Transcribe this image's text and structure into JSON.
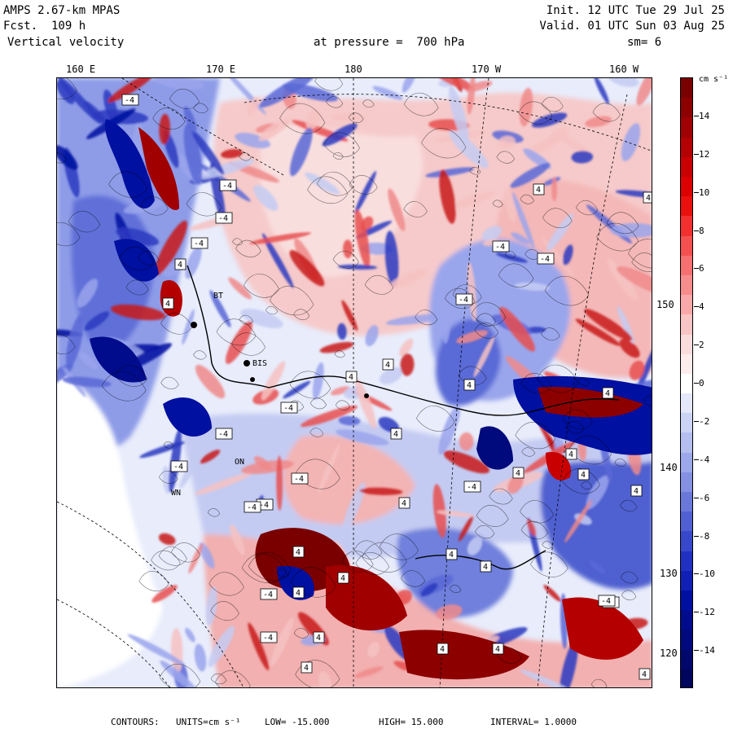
{
  "header": {
    "model": "AMPS 2.67-km MPAS",
    "forecast": "Fcst.  109 h",
    "field": "Vertical velocity",
    "init": "Init. 12 UTC Tue 29 Jul 25",
    "valid": "Valid. 01 UTC Sun 03 Aug 25",
    "level": "at pressure =  700 hPa",
    "smoothing": "sm= 6"
  },
  "longitude_labels": [
    "160 E",
    "170 E",
    "180",
    "170 W",
    "160 W"
  ],
  "latitude_labels": [
    "150 W",
    "140 W",
    "130 W",
    "120 W"
  ],
  "colorbar": {
    "units_label": "cm s⁻¹",
    "tick_labels": [
      "14",
      "12",
      "10",
      "8",
      "6",
      "4",
      "2",
      "0",
      "-2",
      "-4",
      "-6",
      "-8",
      "-10",
      "-12",
      "-14"
    ],
    "colors": [
      "#7a0000",
      "#8c0000",
      "#a00000",
      "#b40000",
      "#c80000",
      "#dc0000",
      "#ea1010",
      "#f23030",
      "#f55050",
      "#f67070",
      "#f78c8c",
      "#f8a8a8",
      "#f9c4c4",
      "#fadcdc",
      "#fcecec",
      "#ffffff",
      "#e4e8fa",
      "#ccd4f6",
      "#b4bff0",
      "#9ca8ea",
      "#8490e2",
      "#6a78da",
      "#5060d2",
      "#3848ca",
      "#2030c0",
      "#1020b4",
      "#0010a0",
      "#000c8c",
      "#000a7c",
      "#00086c",
      "#00065c"
    ]
  },
  "footer": {
    "contours": "CONTOURS:",
    "units": "UNITS=cm s⁻¹",
    "low": "LOW= -15.000",
    "high": "HIGH=  15.000",
    "interval": "INTERVAL=   1.0000"
  },
  "map": {
    "station_labels": [
      "BT",
      "BIS",
      "ON",
      "WN"
    ],
    "box_labels": [
      "4",
      "-4"
    ]
  }
}
